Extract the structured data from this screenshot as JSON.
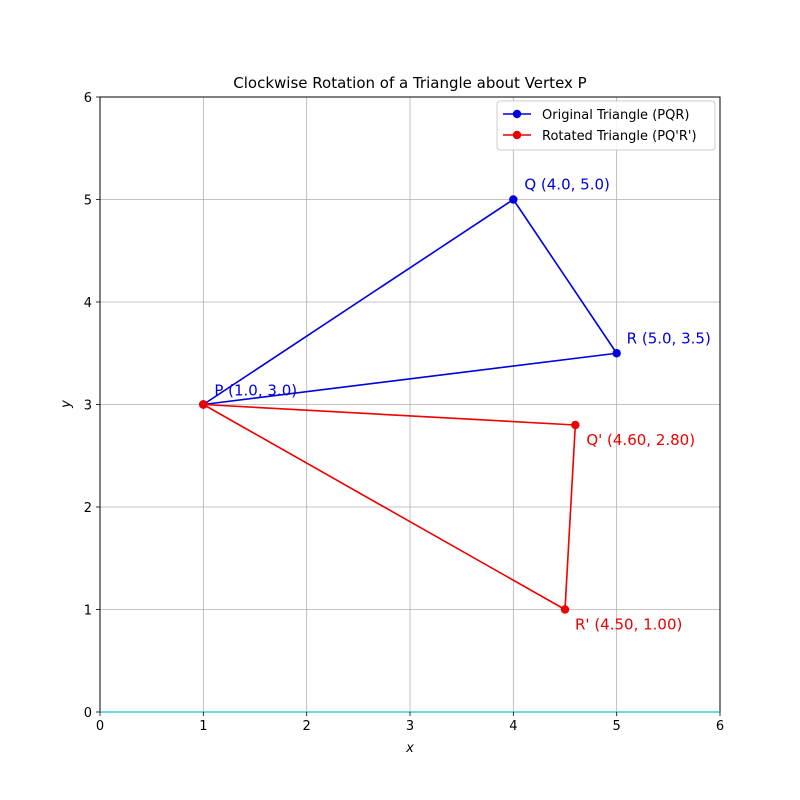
{
  "chart_data": {
    "type": "line",
    "title": "Clockwise Rotation of a Triangle about Vertex P",
    "xlabel": "x",
    "ylabel": "y",
    "xlim": [
      0,
      6
    ],
    "ylim": [
      0,
      6
    ],
    "xticks": [
      "0",
      "1",
      "2",
      "3",
      "4",
      "5",
      "6"
    ],
    "yticks": [
      "0",
      "1",
      "2",
      "3",
      "4",
      "5",
      "6"
    ],
    "grid": true,
    "legend_position": "top-right",
    "series": [
      {
        "name": "Original Triangle (PQR)",
        "color": "#0000dd",
        "points": [
          [
            1.0,
            3.0
          ],
          [
            4.0,
            5.0
          ],
          [
            5.0,
            3.5
          ],
          [
            1.0,
            3.0
          ]
        ]
      },
      {
        "name": "Rotated Triangle (PQ'R')",
        "color": "#ee0000",
        "points": [
          [
            1.0,
            3.0
          ],
          [
            4.6,
            2.8
          ],
          [
            4.5,
            1.0
          ],
          [
            1.0,
            3.0
          ]
        ]
      }
    ],
    "annotations": [
      {
        "text": "P (1.0, 3.0)",
        "x": 1.0,
        "y": 3.0,
        "color": "#0000dd"
      },
      {
        "text": "Q (4.0, 5.0)",
        "x": 4.0,
        "y": 5.0,
        "color": "#0000dd"
      },
      {
        "text": "R (5.0, 3.5)",
        "x": 5.0,
        "y": 3.5,
        "color": "#0000dd"
      },
      {
        "text": "Q' (4.60, 2.80)",
        "x": 4.6,
        "y": 2.8,
        "color": "#ee0000"
      },
      {
        "text": "R' (4.50, 1.00)",
        "x": 4.5,
        "y": 1.0,
        "color": "#ee0000"
      }
    ]
  }
}
